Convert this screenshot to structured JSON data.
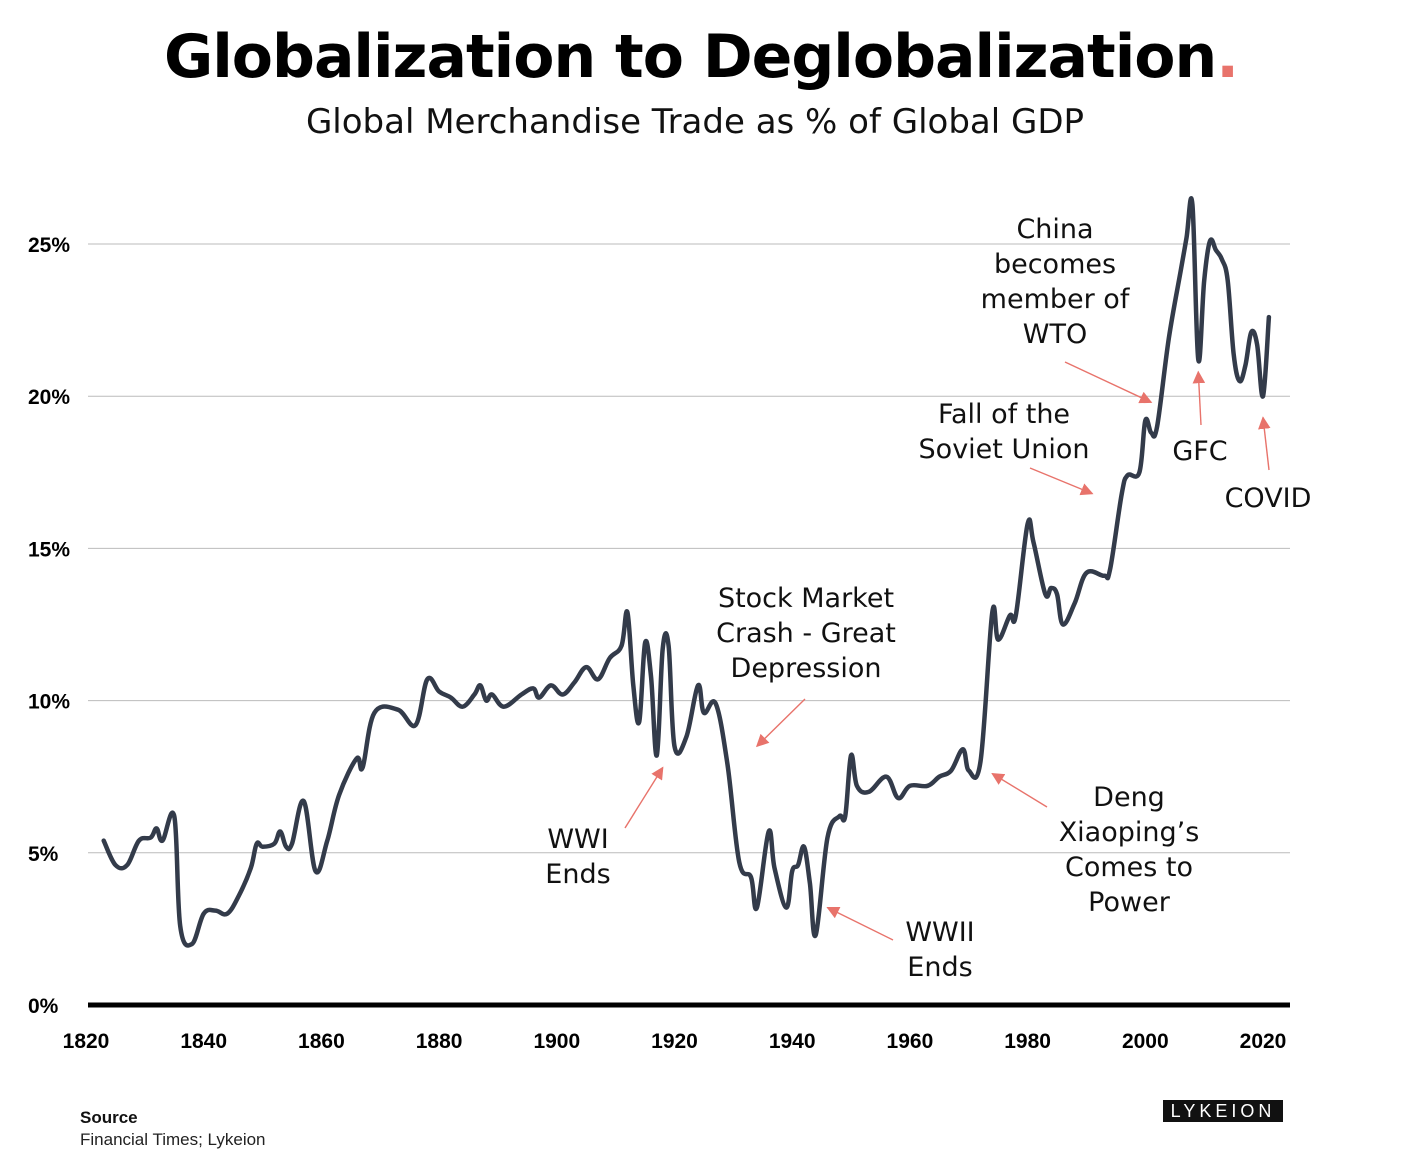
{
  "title": {
    "text": "Globalization to Deglobalization",
    "dot": "."
  },
  "subtitle": "Global Merchandise Trade as % of Global GDP",
  "source": {
    "label": "Source",
    "text": "Financial Times; Lykeion"
  },
  "logo": "LYKEION",
  "colors": {
    "line": "#333b4a",
    "arrow": "#e8736b",
    "grid": "#bbbbbb",
    "axis": "#000000",
    "accent": "#e8736b"
  },
  "chart_data": {
    "type": "line",
    "title": "Globalization to Deglobalization",
    "subtitle": "Global Merchandise Trade as % of Global GDP",
    "xlabel": "",
    "ylabel": "",
    "xlim": [
      1820,
      2022
    ],
    "ylim": [
      0,
      27
    ],
    "grid": true,
    "x_ticks": [
      "1820",
      "1840",
      "1860",
      "1880",
      "1900",
      "1920",
      "1940",
      "1960",
      "1980",
      "2000",
      "2020"
    ],
    "y_ticks": [
      {
        "value": 0,
        "label": "0%"
      },
      {
        "value": 5,
        "label": "5%"
      },
      {
        "value": 10,
        "label": "10%"
      },
      {
        "value": 15,
        "label": "15%"
      },
      {
        "value": 20,
        "label": "20%"
      },
      {
        "value": 25,
        "label": "25%"
      }
    ],
    "series": [
      {
        "points": [
          [
            1823,
            5.4
          ],
          [
            1825,
            4.6
          ],
          [
            1827,
            4.6
          ],
          [
            1829,
            5.4
          ],
          [
            1831,
            5.5
          ],
          [
            1832,
            5.8
          ],
          [
            1833,
            5.4
          ],
          [
            1835,
            6.2
          ],
          [
            1836,
            2.6
          ],
          [
            1838,
            2.0
          ],
          [
            1840,
            3.0
          ],
          [
            1842,
            3.1
          ],
          [
            1844,
            3.0
          ],
          [
            1846,
            3.6
          ],
          [
            1848,
            4.5
          ],
          [
            1849,
            5.3
          ],
          [
            1850,
            5.2
          ],
          [
            1852,
            5.3
          ],
          [
            1853,
            5.7
          ],
          [
            1854,
            5.2
          ],
          [
            1855,
            5.3
          ],
          [
            1857,
            6.7
          ],
          [
            1859,
            4.4
          ],
          [
            1861,
            5.4
          ],
          [
            1863,
            6.9
          ],
          [
            1866,
            8.1
          ],
          [
            1867,
            7.8
          ],
          [
            1869,
            9.6
          ],
          [
            1873,
            9.7
          ],
          [
            1876,
            9.2
          ],
          [
            1878,
            10.7
          ],
          [
            1880,
            10.3
          ],
          [
            1882,
            10.1
          ],
          [
            1884,
            9.8
          ],
          [
            1886,
            10.2
          ],
          [
            1887,
            10.5
          ],
          [
            1888,
            10.0
          ],
          [
            1889,
            10.2
          ],
          [
            1891,
            9.8
          ],
          [
            1894,
            10.2
          ],
          [
            1896,
            10.4
          ],
          [
            1897,
            10.1
          ],
          [
            1899,
            10.5
          ],
          [
            1901,
            10.2
          ],
          [
            1903,
            10.6
          ],
          [
            1905,
            11.1
          ],
          [
            1907,
            10.7
          ],
          [
            1909,
            11.4
          ],
          [
            1911,
            11.8
          ],
          [
            1912,
            12.9
          ],
          [
            1913,
            10.5
          ],
          [
            1914,
            9.3
          ],
          [
            1915,
            11.9
          ],
          [
            1916,
            10.8
          ],
          [
            1917,
            8.2
          ],
          [
            1918,
            11.7
          ],
          [
            1919,
            11.8
          ],
          [
            1920,
            8.5
          ],
          [
            1922,
            8.8
          ],
          [
            1924,
            10.5
          ],
          [
            1925,
            9.6
          ],
          [
            1927,
            9.9
          ],
          [
            1929,
            7.9
          ],
          [
            1931,
            4.7
          ],
          [
            1933,
            4.2
          ],
          [
            1934,
            3.2
          ],
          [
            1936,
            5.7
          ],
          [
            1937,
            4.5
          ],
          [
            1939,
            3.2
          ],
          [
            1940,
            4.4
          ],
          [
            1941,
            4.6
          ],
          [
            1942,
            5.2
          ],
          [
            1943,
            4.0
          ],
          [
            1944,
            2.3
          ],
          [
            1946,
            5.5
          ],
          [
            1948,
            6.2
          ],
          [
            1949,
            6.2
          ],
          [
            1950,
            8.2
          ],
          [
            1951,
            7.2
          ],
          [
            1953,
            7.0
          ],
          [
            1956,
            7.5
          ],
          [
            1958,
            6.8
          ],
          [
            1960,
            7.2
          ],
          [
            1963,
            7.2
          ],
          [
            1965,
            7.5
          ],
          [
            1967,
            7.7
          ],
          [
            1969,
            8.4
          ],
          [
            1970,
            7.7
          ],
          [
            1972,
            8.0
          ],
          [
            1974,
            12.9
          ],
          [
            1975,
            12.0
          ],
          [
            1977,
            12.8
          ],
          [
            1978,
            12.8
          ],
          [
            1980,
            15.8
          ],
          [
            1981,
            15.2
          ],
          [
            1983,
            13.5
          ],
          [
            1984,
            13.7
          ],
          [
            1985,
            13.5
          ],
          [
            1986,
            12.5
          ],
          [
            1988,
            13.2
          ],
          [
            1990,
            14.2
          ],
          [
            1993,
            14.1
          ],
          [
            1994,
            14.3
          ],
          [
            1996,
            16.8
          ],
          [
            1997,
            17.4
          ],
          [
            1999,
            17.5
          ],
          [
            2000,
            19.2
          ],
          [
            2001,
            18.8
          ],
          [
            2002,
            19.0
          ],
          [
            2004,
            21.9
          ],
          [
            2006,
            24.1
          ],
          [
            2007,
            25.2
          ],
          [
            2008,
            26.3
          ],
          [
            2009,
            21.2
          ],
          [
            2010,
            23.8
          ],
          [
            2011,
            25.1
          ],
          [
            2012,
            24.8
          ],
          [
            2013,
            24.5
          ],
          [
            2014,
            23.8
          ],
          [
            2015,
            21.4
          ],
          [
            2016,
            20.5
          ],
          [
            2017,
            21.0
          ],
          [
            2018,
            22.1
          ],
          [
            2019,
            21.7
          ],
          [
            2020,
            20.0
          ],
          [
            2021,
            22.6
          ]
        ]
      }
    ],
    "annotations": [
      {
        "lines": [
          "China",
          "becomes",
          "member of",
          "WTO"
        ],
        "x": 2001,
        "y": 19.8
      },
      {
        "lines": [
          "Fall of the",
          "Soviet Union"
        ],
        "x": 1991,
        "y": 16.8
      },
      {
        "lines": [
          "GFC"
        ],
        "x": 2009,
        "y": 20.8
      },
      {
        "lines": [
          "COVID"
        ],
        "x": 2020,
        "y": 19.3
      },
      {
        "lines": [
          "Stock Market",
          "Crash - Great",
          "Depression"
        ],
        "x": 1934,
        "y": 8.5
      },
      {
        "lines": [
          "WWI",
          "Ends"
        ],
        "x": 1918,
        "y": 7.8
      },
      {
        "lines": [
          "WWII",
          "Ends"
        ],
        "x": 1946,
        "y": 3.2
      },
      {
        "lines": [
          "Deng",
          "Xiaoping’s",
          "Comes to",
          "Power"
        ],
        "x": 1974,
        "y": 7.6
      }
    ]
  }
}
